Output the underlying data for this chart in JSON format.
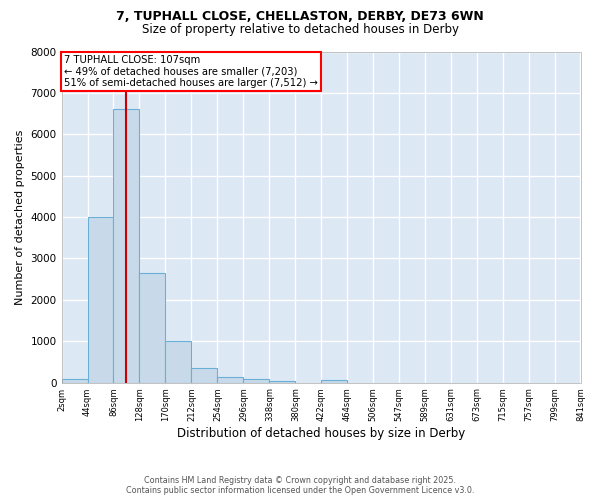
{
  "title_line1": "7, TUPHALL CLOSE, CHELLASTON, DERBY, DE73 6WN",
  "title_line2": "Size of property relative to detached houses in Derby",
  "xlabel": "Distribution of detached houses by size in Derby",
  "ylabel": "Number of detached properties",
  "annotation_lines": [
    "7 TUPHALL CLOSE: 107sqm",
    "← 49% of detached houses are smaller (7,203)",
    "51% of semi-detached houses are larger (7,512) →"
  ],
  "property_size": 107,
  "bar_edges": [
    2,
    44,
    86,
    128,
    170,
    212,
    254,
    296,
    338,
    380,
    422,
    464,
    506,
    547,
    589,
    631,
    673,
    715,
    757,
    799,
    841
  ],
  "bar_heights": [
    80,
    4000,
    6600,
    2650,
    1000,
    350,
    130,
    80,
    50,
    0,
    60,
    0,
    0,
    0,
    0,
    0,
    0,
    0,
    0,
    0
  ],
  "bar_color": "#c8daea",
  "bar_edge_color": "#6aafd6",
  "vline_color": "#cc0000",
  "ylim": [
    0,
    8000
  ],
  "yticks": [
    0,
    1000,
    2000,
    3000,
    4000,
    5000,
    6000,
    7000,
    8000
  ],
  "plot_bg_color": "#dde8f5",
  "fig_bg_color": "#ffffff",
  "grid_color": "#ffffff",
  "footer_line1": "Contains HM Land Registry data © Crown copyright and database right 2025.",
  "footer_line2": "Contains public sector information licensed under the Open Government Licence v3.0.",
  "tick_labels": [
    "2sqm",
    "44sqm",
    "86sqm",
    "128sqm",
    "170sqm",
    "212sqm",
    "254sqm",
    "296sqm",
    "338sqm",
    "380sqm",
    "422sqm",
    "464sqm",
    "506sqm",
    "547sqm",
    "589sqm",
    "631sqm",
    "673sqm",
    "715sqm",
    "757sqm",
    "799sqm",
    "841sqm"
  ]
}
